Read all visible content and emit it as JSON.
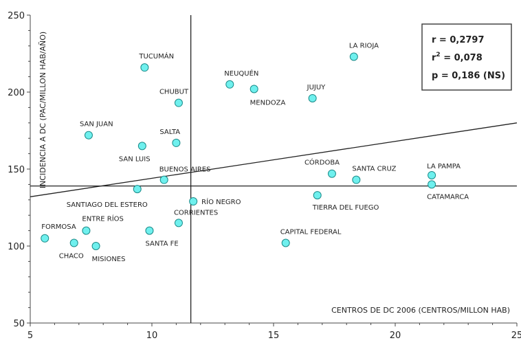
{
  "chart_data": {
    "type": "scatter",
    "xlabel": "CENTROS DE DC 2006 (CENTROS/MILLON HAB)",
    "ylabel": "INCIDENCIA A DC (PAC/MILLON HAB/AÑO)",
    "xlim": [
      5,
      25
    ],
    "ylim": [
      50,
      250
    ],
    "x_ticks": [
      5,
      10,
      15,
      20,
      25
    ],
    "y_ticks": [
      50,
      100,
      150,
      200,
      250
    ],
    "points": [
      {
        "label": "FORMOSA",
        "x": 5.6,
        "y": 105
      },
      {
        "label": "CHACO",
        "x": 6.8,
        "y": 102
      },
      {
        "label": "ENTRE RÍOS",
        "x": 7.3,
        "y": 110
      },
      {
        "label": "MISIONES",
        "x": 7.7,
        "y": 100
      },
      {
        "label": "SAN JUAN",
        "x": 7.4,
        "y": 172
      },
      {
        "label": "TUCUMÁN",
        "x": 9.7,
        "y": 216
      },
      {
        "label": "SAN LUIS",
        "x": 9.6,
        "y": 165
      },
      {
        "label": "SANTIAGO DEL ESTERO",
        "x": 9.4,
        "y": 137
      },
      {
        "label": "SANTA FE",
        "x": 9.9,
        "y": 110
      },
      {
        "label": "BUENOS AIRES",
        "x": 10.5,
        "y": 143
      },
      {
        "label": "SALTA",
        "x": 11.0,
        "y": 167
      },
      {
        "label": "CHUBUT",
        "x": 11.1,
        "y": 193
      },
      {
        "label": "CORRIENTES",
        "x": 11.1,
        "y": 115
      },
      {
        "label": "RÍO NEGRO",
        "x": 11.7,
        "y": 129
      },
      {
        "label": "NEUQUÉN",
        "x": 13.2,
        "y": 205
      },
      {
        "label": "MENDOZA",
        "x": 14.2,
        "y": 202
      },
      {
        "label": "CAPITAL FEDERAL",
        "x": 15.5,
        "y": 102
      },
      {
        "label": "JUJUY",
        "x": 16.6,
        "y": 196
      },
      {
        "label": "TIERRA DEL FUEGO",
        "x": 16.8,
        "y": 133
      },
      {
        "label": "CÓRDOBA",
        "x": 17.4,
        "y": 147
      },
      {
        "label": "LA RIOJA",
        "x": 18.3,
        "y": 223
      },
      {
        "label": "SANTA CRUZ",
        "x": 18.4,
        "y": 143
      },
      {
        "label": "LA PAMPA",
        "x": 21.5,
        "y": 146
      },
      {
        "label": "CATAMARCA",
        "x": 21.5,
        "y": 140
      }
    ],
    "regression_line": {
      "x": [
        5,
        25
      ],
      "y": [
        132,
        180
      ]
    },
    "mean_x": 11.6,
    "mean_y": 139,
    "stats": {
      "r": "r = 0,2797",
      "r2_base": "r",
      "r2_sup": "2",
      "r2_value": " = 0,078",
      "p": "p  = 0,186 (NS)"
    },
    "grid": false,
    "marker_fill": "#6ff0ee",
    "marker_stroke": "#1a8a88",
    "line_color": "#222222"
  }
}
